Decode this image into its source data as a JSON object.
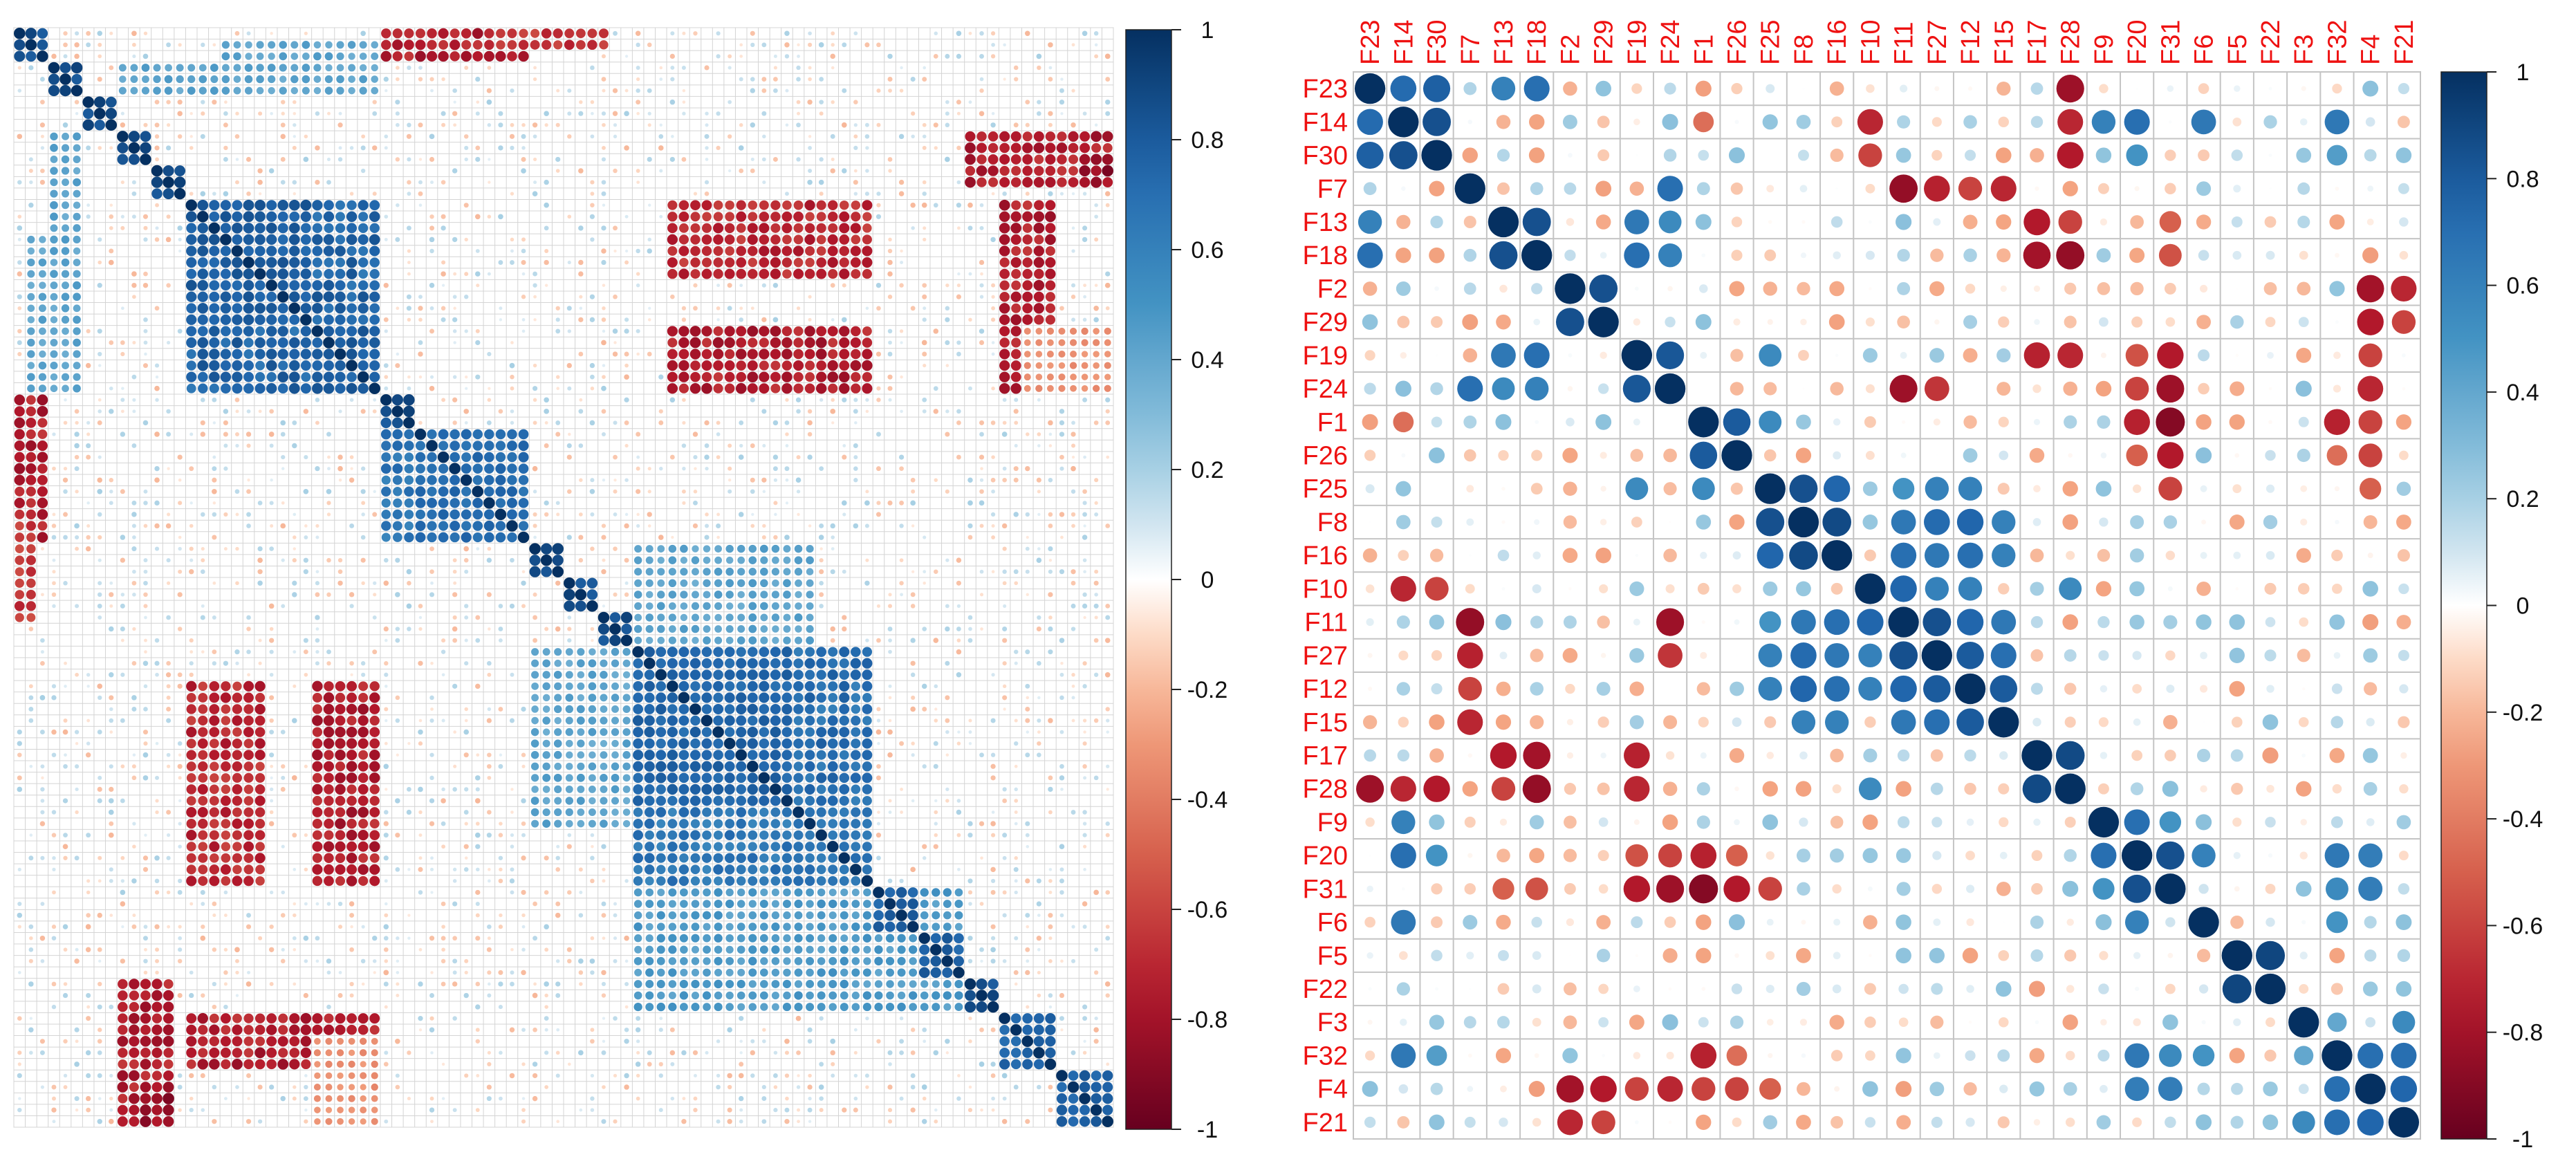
{
  "chart_data": [
    {
      "type": "heatmap",
      "title": "",
      "xlabel": "",
      "ylabel": "",
      "n": 96,
      "blocks": [
        {
          "start": 0,
          "size": 3,
          "value": 0.9
        },
        {
          "start": 3,
          "size": 3,
          "value": 0.9
        },
        {
          "start": 6,
          "size": 3,
          "value": 0.9
        },
        {
          "start": 9,
          "size": 3,
          "value": 0.9
        },
        {
          "start": 12,
          "size": 3,
          "value": 0.9
        },
        {
          "start": 15,
          "size": 11,
          "value": 0.82
        },
        {
          "start": 26,
          "size": 6,
          "value": 0.82
        },
        {
          "start": 32,
          "size": 3,
          "value": 0.9
        },
        {
          "start": 35,
          "size": 10,
          "value": 0.75
        },
        {
          "start": 45,
          "size": 3,
          "value": 0.9
        },
        {
          "start": 48,
          "size": 3,
          "value": 0.9
        },
        {
          "start": 51,
          "size": 3,
          "value": 0.9
        },
        {
          "start": 54,
          "size": 14,
          "value": 0.78
        },
        {
          "start": 68,
          "size": 7,
          "value": 0.7
        },
        {
          "start": 75,
          "size": 4,
          "value": 0.8
        },
        {
          "start": 79,
          "size": 4,
          "value": 0.8
        },
        {
          "start": 83,
          "size": 3,
          "value": 0.9
        },
        {
          "start": 86,
          "size": 5,
          "value": 0.8
        },
        {
          "start": 91,
          "size": 5,
          "value": 0.8
        }
      ],
      "rects": [
        {
          "rows": [
            15,
            26
          ],
          "cols": [
            15,
            32
          ],
          "value": 0.8
        },
        {
          "rows": [
            26,
            32
          ],
          "cols": [
            15,
            26
          ],
          "value": 0.8
        },
        {
          "rows": [
            35,
            45
          ],
          "cols": [
            32,
            45
          ],
          "value": 0.72
        },
        {
          "rows": [
            54,
            68
          ],
          "cols": [
            54,
            75
          ],
          "value": 0.75
        },
        {
          "rows": [
            68,
            75
          ],
          "cols": [
            54,
            68
          ],
          "value": 0.7
        },
        {
          "rows": [
            75,
            86
          ],
          "cols": [
            54,
            83
          ],
          "value": 0.5
        },
        {
          "rows": [
            15,
            22
          ],
          "cols": [
            57,
            75
          ],
          "value": -0.75
        },
        {
          "rows": [
            57,
            75
          ],
          "cols": [
            15,
            22
          ],
          "value": -0.75
        },
        {
          "rows": [
            26,
            32
          ],
          "cols": [
            57,
            75
          ],
          "value": -0.8
        },
        {
          "rows": [
            57,
            75
          ],
          "cols": [
            26,
            32
          ],
          "value": -0.8
        },
        {
          "rows": [
            32,
            45
          ],
          "cols": [
            0,
            3
          ],
          "value": -0.8
        },
        {
          "rows": [
            0,
            3
          ],
          "cols": [
            32,
            45
          ],
          "value": -0.8
        },
        {
          "rows": [
            0,
            2
          ],
          "cols": [
            42,
            52
          ],
          "value": -0.7
        },
        {
          "rows": [
            42,
            52
          ],
          "cols": [
            0,
            2
          ],
          "value": -0.7
        },
        {
          "rows": [
            3,
            6
          ],
          "cols": [
            9,
            32
          ],
          "value": 0.45
        },
        {
          "rows": [
            9,
            32
          ],
          "cols": [
            3,
            6
          ],
          "value": 0.45
        },
        {
          "rows": [
            1,
            4
          ],
          "cols": [
            18,
            32
          ],
          "value": 0.45
        },
        {
          "rows": [
            18,
            32
          ],
          "cols": [
            1,
            4
          ],
          "value": 0.45
        },
        {
          "rows": [
            83,
            96
          ],
          "cols": [
            9,
            14
          ],
          "value": -0.8
        },
        {
          "rows": [
            9,
            14
          ],
          "cols": [
            83,
            96
          ],
          "value": -0.8
        },
        {
          "rows": [
            11,
            14
          ],
          "cols": [
            93,
            96
          ],
          "value": -0.9
        },
        {
          "rows": [
            93,
            96
          ],
          "cols": [
            11,
            14
          ],
          "value": -0.9
        },
        {
          "rows": [
            86,
            91
          ],
          "cols": [
            15,
            32
          ],
          "value": -0.8
        },
        {
          "rows": [
            15,
            32
          ],
          "cols": [
            86,
            91
          ],
          "value": -0.8
        },
        {
          "rows": [
            45,
            54
          ],
          "cols": [
            54,
            70
          ],
          "value": 0.45
        },
        {
          "rows": [
            54,
            70
          ],
          "cols": [
            45,
            54
          ],
          "value": 0.45
        },
        {
          "rows": [
            26,
            32
          ],
          "cols": [
            88,
            96
          ],
          "value": -0.35
        },
        {
          "rows": [
            88,
            96
          ],
          "cols": [
            26,
            32
          ],
          "value": -0.35
        }
      ],
      "colorbar": {
        "ticks": [
          "1",
          "0.8",
          "0.6",
          "0.4",
          "0.2",
          "0",
          "-0.2",
          "-0.4",
          "-0.6",
          "-0.8",
          "-1"
        ],
        "range": [
          -1,
          1
        ]
      }
    },
    {
      "type": "heatmap",
      "title": "",
      "xlabel": "",
      "ylabel": "",
      "variables": [
        "F23",
        "F14",
        "F30",
        "F7",
        "F13",
        "F18",
        "F2",
        "F29",
        "F19",
        "F24",
        "F1",
        "F26",
        "F25",
        "F8",
        "F16",
        "F10",
        "F11",
        "F27",
        "F12",
        "F15",
        "F17",
        "F28",
        "F9",
        "F20",
        "F31",
        "F6",
        "F5",
        "F22",
        "F3",
        "F32",
        "F4",
        "F21"
      ],
      "pairs": [
        [
          "F23",
          "F14",
          0.72
        ],
        [
          "F23",
          "F30",
          0.78
        ],
        [
          "F23",
          "F13",
          0.6
        ],
        [
          "F23",
          "F18",
          0.7
        ],
        [
          "F23",
          "F28",
          -0.82
        ],
        [
          "F14",
          "F30",
          0.85
        ],
        [
          "F14",
          "F10",
          -0.7
        ],
        [
          "F14",
          "F28",
          -0.7
        ],
        [
          "F14",
          "F9",
          0.6
        ],
        [
          "F14",
          "F20",
          0.7
        ],
        [
          "F14",
          "F6",
          0.65
        ],
        [
          "F14",
          "F32",
          0.65
        ],
        [
          "F14",
          "F1",
          -0.45
        ],
        [
          "F30",
          "F10",
          -0.6
        ],
        [
          "F30",
          "F28",
          -0.75
        ],
        [
          "F30",
          "F20",
          0.5
        ],
        [
          "F30",
          "F32",
          0.45
        ],
        [
          "F7",
          "F24",
          0.7
        ],
        [
          "F7",
          "F11",
          -0.85
        ],
        [
          "F7",
          "F27",
          -0.72
        ],
        [
          "F7",
          "F12",
          -0.6
        ],
        [
          "F7",
          "F15",
          -0.7
        ],
        [
          "F13",
          "F18",
          0.85
        ],
        [
          "F13",
          "F19",
          0.65
        ],
        [
          "F13",
          "F24",
          0.55
        ],
        [
          "F13",
          "F17",
          -0.75
        ],
        [
          "F13",
          "F28",
          -0.6
        ],
        [
          "F13",
          "F31",
          -0.5
        ],
        [
          "F18",
          "F19",
          0.7
        ],
        [
          "F18",
          "F24",
          0.6
        ],
        [
          "F18",
          "F17",
          -0.8
        ],
        [
          "F18",
          "F28",
          -0.85
        ],
        [
          "F18",
          "F31",
          -0.55
        ],
        [
          "F2",
          "F29",
          0.85
        ],
        [
          "F2",
          "F4",
          -0.8
        ],
        [
          "F2",
          "F21",
          -0.7
        ],
        [
          "F29",
          "F4",
          -0.75
        ],
        [
          "F29",
          "F21",
          -0.6
        ],
        [
          "F19",
          "F24",
          0.82
        ],
        [
          "F19",
          "F25",
          0.55
        ],
        [
          "F19",
          "F17",
          -0.72
        ],
        [
          "F19",
          "F28",
          -0.7
        ],
        [
          "F19",
          "F20",
          -0.55
        ],
        [
          "F19",
          "F31",
          -0.75
        ],
        [
          "F19",
          "F4",
          -0.6
        ],
        [
          "F24",
          "F11",
          -0.82
        ],
        [
          "F24",
          "F27",
          -0.65
        ],
        [
          "F24",
          "F31",
          -0.82
        ],
        [
          "F24",
          "F20",
          -0.6
        ],
        [
          "F24",
          "F4",
          -0.7
        ],
        [
          "F1",
          "F26",
          0.8
        ],
        [
          "F1",
          "F25",
          0.55
        ],
        [
          "F1",
          "F20",
          -0.72
        ],
        [
          "F1",
          "F31",
          -0.9
        ],
        [
          "F1",
          "F32",
          -0.72
        ],
        [
          "F1",
          "F4",
          -0.6
        ],
        [
          "F26",
          "F31",
          -0.75
        ],
        [
          "F26",
          "F4",
          -0.6
        ],
        [
          "F26",
          "F20",
          -0.5
        ],
        [
          "F26",
          "F32",
          -0.45
        ],
        [
          "F25",
          "F8",
          0.85
        ],
        [
          "F25",
          "F16",
          0.75
        ],
        [
          "F25",
          "F11",
          0.5
        ],
        [
          "F25",
          "F27",
          0.6
        ],
        [
          "F25",
          "F12",
          0.6
        ],
        [
          "F25",
          "F31",
          -0.6
        ],
        [
          "F25",
          "F4",
          -0.5
        ],
        [
          "F8",
          "F16",
          0.88
        ],
        [
          "F8",
          "F11",
          0.65
        ],
        [
          "F8",
          "F27",
          0.72
        ],
        [
          "F8",
          "F12",
          0.75
        ],
        [
          "F8",
          "F15",
          0.6
        ],
        [
          "F16",
          "F11",
          0.7
        ],
        [
          "F16",
          "F27",
          0.65
        ],
        [
          "F16",
          "F12",
          0.7
        ],
        [
          "F16",
          "F15",
          0.6
        ],
        [
          "F10",
          "F11",
          0.75
        ],
        [
          "F10",
          "F27",
          0.6
        ],
        [
          "F10",
          "F12",
          0.6
        ],
        [
          "F10",
          "F28",
          0.55
        ],
        [
          "F11",
          "F27",
          0.85
        ],
        [
          "F11",
          "F12",
          0.75
        ],
        [
          "F11",
          "F15",
          0.65
        ],
        [
          "F27",
          "F12",
          0.8
        ],
        [
          "F27",
          "F15",
          0.7
        ],
        [
          "F12",
          "F15",
          0.8
        ],
        [
          "F17",
          "F28",
          0.88
        ],
        [
          "F9",
          "F20",
          0.7
        ],
        [
          "F9",
          "F31",
          0.5
        ],
        [
          "F20",
          "F31",
          0.85
        ],
        [
          "F20",
          "F6",
          0.6
        ],
        [
          "F20",
          "F32",
          0.65
        ],
        [
          "F20",
          "F4",
          0.62
        ],
        [
          "F31",
          "F32",
          0.55
        ],
        [
          "F31",
          "F4",
          0.62
        ],
        [
          "F6",
          "F32",
          0.5
        ],
        [
          "F5",
          "F22",
          0.9
        ],
        [
          "F3",
          "F21",
          0.55
        ],
        [
          "F3",
          "F32",
          0.4
        ],
        [
          "F32",
          "F4",
          0.7
        ],
        [
          "F32",
          "F21",
          0.7
        ],
        [
          "F4",
          "F21",
          0.75
        ]
      ],
      "colorbar": {
        "ticks": [
          "1",
          "0.8",
          "0.6",
          "0.4",
          "0.2",
          "0",
          "-0.2",
          "-0.4",
          "-0.6",
          "-0.8",
          "-1"
        ],
        "range": [
          -1,
          1
        ]
      }
    }
  ]
}
